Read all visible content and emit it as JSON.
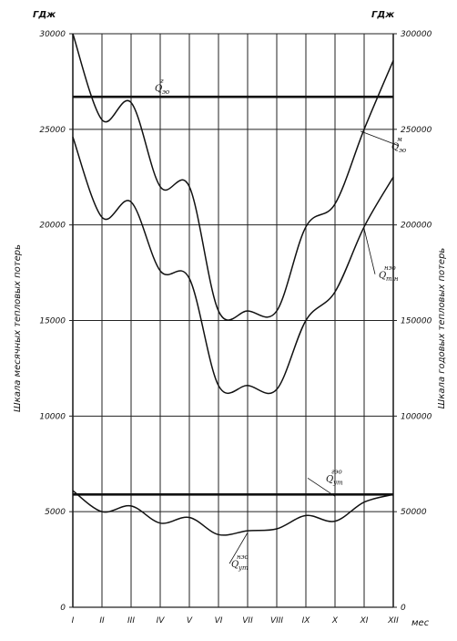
{
  "chart_data": {
    "type": "line",
    "left_unit": "ГДж",
    "right_unit": "ГДж",
    "ylabel_left": "Шкала месячных тепловых потерь",
    "ylabel_right": "Шкала годовых тепловых потерь",
    "xlabel": "мес",
    "categories": [
      "I",
      "II",
      "III",
      "IV",
      "V",
      "VI",
      "VII",
      "VIII",
      "IX",
      "X",
      "XI",
      "XII"
    ],
    "ylim_left": [
      0,
      30000
    ],
    "ylim_right": [
      0,
      300000
    ],
    "yticks_left": [
      0,
      5000,
      10000,
      15000,
      20000,
      25000,
      30000
    ],
    "ytick_labels_left": [
      "0",
      "5000",
      "10000",
      "15000",
      "20000",
      "25000",
      "30000"
    ],
    "yticks_right": [
      0,
      50000,
      100000,
      150000,
      200000,
      250000,
      300000
    ],
    "ytick_labels_right": [
      "0",
      "50000",
      "100000",
      "150000",
      "200000",
      "250000",
      "300000"
    ],
    "grid": true,
    "series": [
      {
        "name": "Q_эо^г",
        "base": "Q",
        "sup": "г",
        "sub": "эо",
        "style": "thick",
        "axis": "left",
        "values": [
          26700,
          26700,
          26700,
          26700,
          26700,
          26700,
          26700,
          26700,
          26700,
          26700,
          26700,
          26700
        ]
      },
      {
        "name": "Q_эо^м",
        "base": "Q",
        "sup": "м",
        "sub": "эо",
        "style": "normal",
        "axis": "left",
        "values": [
          30000,
          25500,
          26400,
          22000,
          22000,
          15500,
          15500,
          15500,
          19900,
          21100,
          25000,
          28600
        ]
      },
      {
        "name": "Q_т.н^нэо",
        "base": "Q",
        "sup": "нэо",
        "sub": "т.н",
        "style": "normal",
        "axis": "left",
        "values": [
          24600,
          20400,
          21200,
          17600,
          17200,
          11600,
          11600,
          11400,
          15000,
          16500,
          19900,
          22500
        ]
      },
      {
        "name": "Q_ут^гэо",
        "base": "Q",
        "sup": "гэо",
        "sub": "ут",
        "style": "thick",
        "axis": "left",
        "values": [
          5900,
          5900,
          5900,
          5900,
          5900,
          5900,
          5900,
          5900,
          5900,
          5900,
          5900,
          5900
        ]
      },
      {
        "name": "Q_ут^нэо",
        "base": "Q",
        "sup": "нэо",
        "sub": "ут",
        "style": "normal",
        "axis": "left",
        "values": [
          6100,
          5000,
          5300,
          4400,
          4700,
          3800,
          4000,
          4100,
          4800,
          4500,
          5500,
          5900
        ]
      }
    ]
  }
}
